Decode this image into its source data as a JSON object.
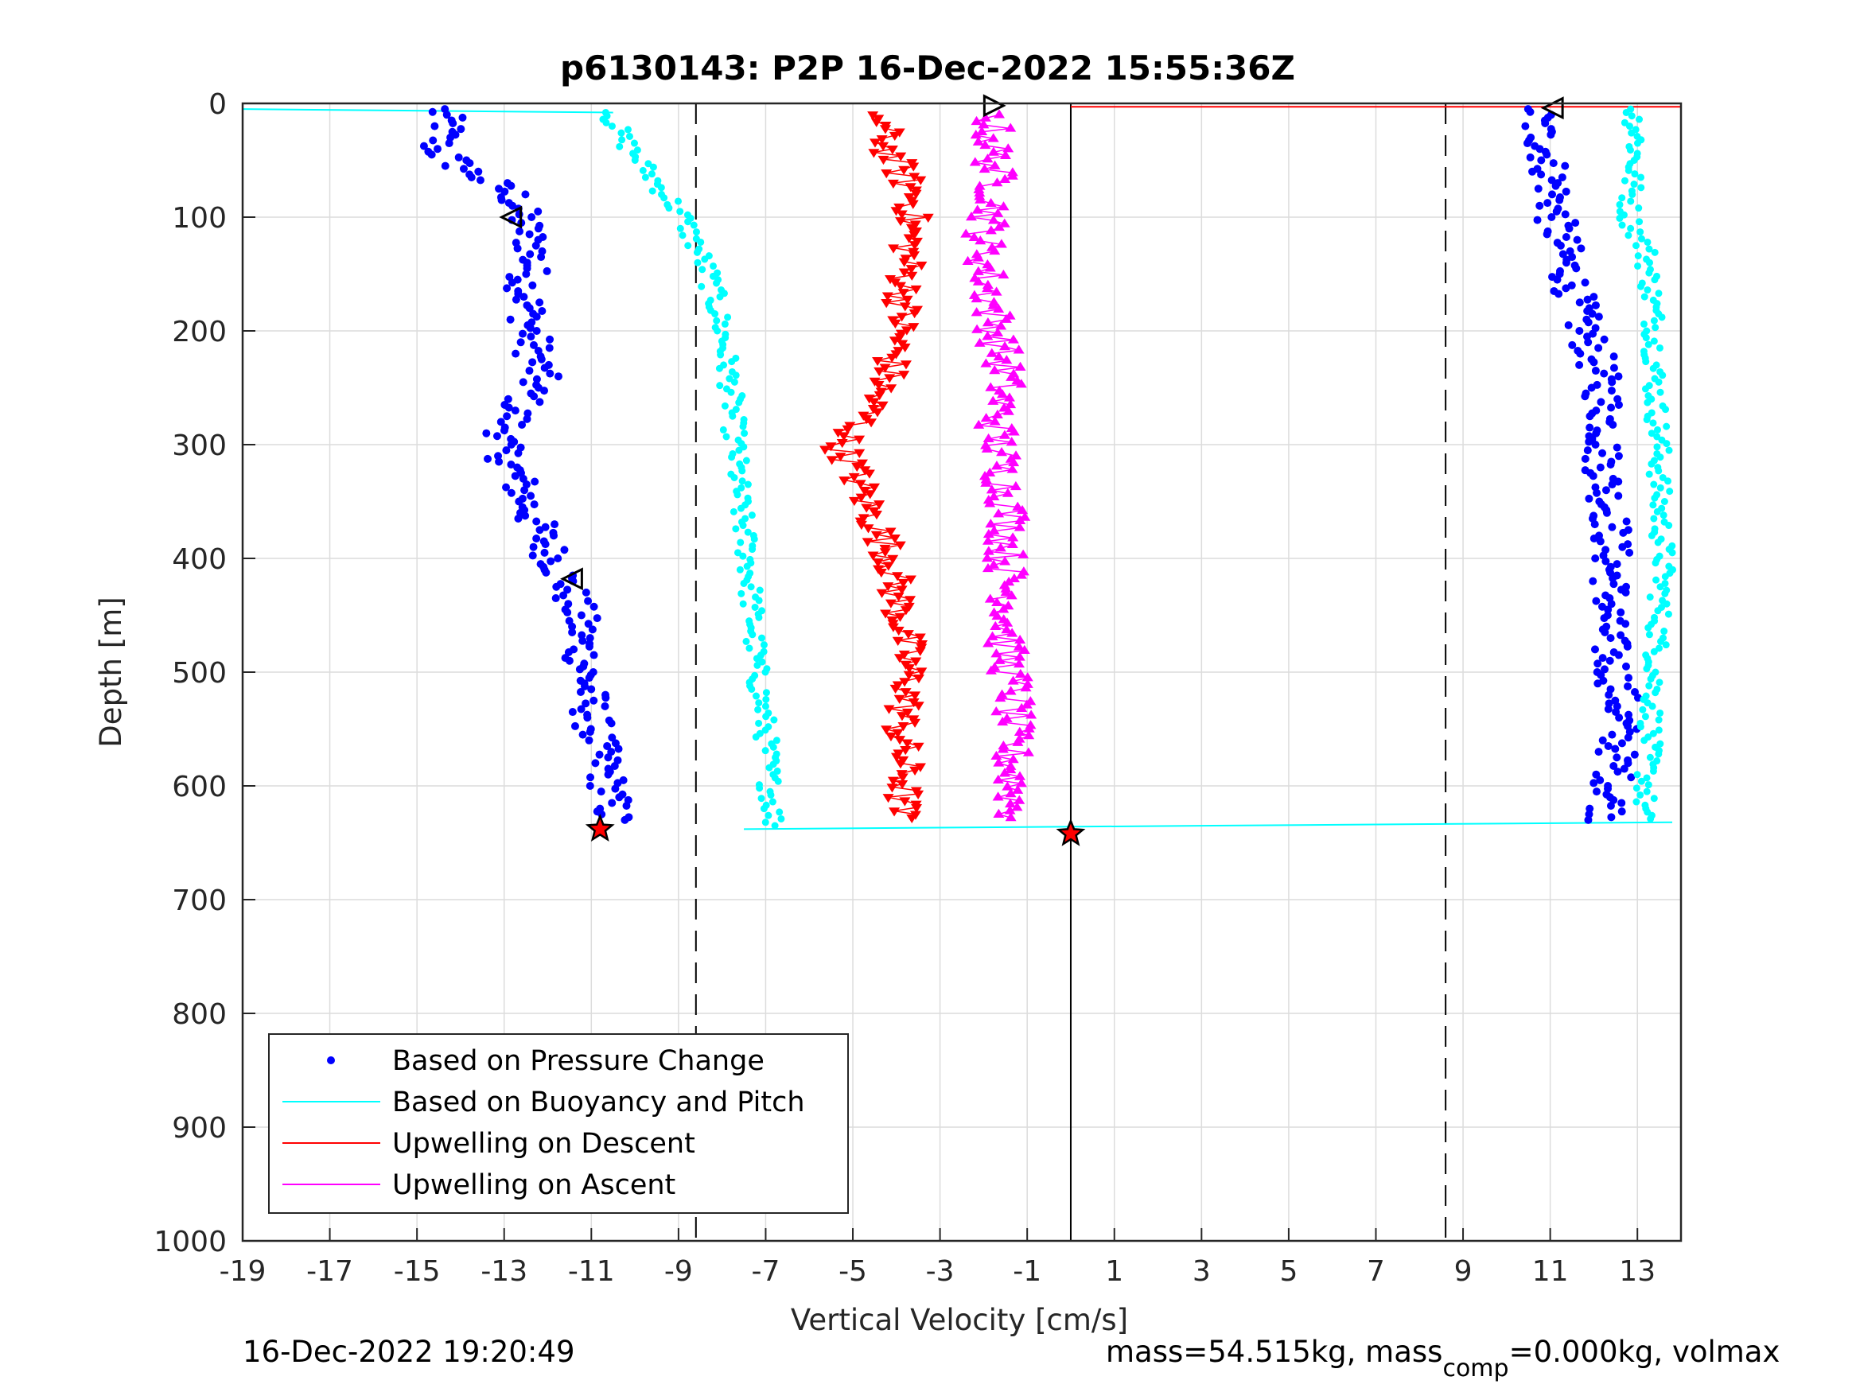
{
  "chart_data": {
    "type": "scatter",
    "title": "p6130143: P2P 16-Dec-2022 15:55:36Z",
    "xlabel": "Vertical Velocity [cm/s]",
    "ylabel": "Depth [m]",
    "xlim": [
      -19,
      14
    ],
    "ylim": [
      1000,
      0
    ],
    "y_reversed": true,
    "xticks": [
      -19,
      -17,
      -15,
      -13,
      -11,
      -9,
      -7,
      -5,
      -3,
      -1,
      1,
      3,
      5,
      7,
      9,
      11,
      13
    ],
    "yticks": [
      0,
      100,
      200,
      300,
      400,
      500,
      600,
      700,
      800,
      900,
      1000
    ],
    "grid": true,
    "legend_position": "bottom-left",
    "reference_lines": {
      "dashed_x": [
        -8.6,
        8.6
      ],
      "solid_x": [
        0
      ]
    },
    "legend": [
      {
        "label": "Based on Pressure Change",
        "color": "#0000ff",
        "marker": "dot"
      },
      {
        "label": "Based on Buoyancy and Pitch",
        "color": "#00ffff",
        "marker": "line"
      },
      {
        "label": "Upwelling on Descent",
        "color": "#ff0000",
        "marker": "line"
      },
      {
        "label": "Upwelling on Ascent",
        "color": "#ff00ff",
        "marker": "line"
      }
    ],
    "series": [
      {
        "name": "Based on Pressure Change",
        "color": "#0000ff",
        "kind": "dots",
        "branches": [
          {
            "depth": [
              5,
              20,
              40,
              60,
              80,
              100,
              130,
              160,
              200,
              240,
              270,
              300,
              330,
              360,
              390,
              420,
              450,
              480,
              510,
              540,
              570,
              600,
              630
            ],
            "velocity": [
              -14.5,
              -14.3,
              -14.6,
              -13.8,
              -12.8,
              -12.6,
              -12.3,
              -12.5,
              -12.4,
              -12.2,
              -12.7,
              -13.1,
              -12.7,
              -12.4,
              -12.0,
              -11.6,
              -11.3,
              -11.2,
              -11.1,
              -11.0,
              -10.8,
              -10.6,
              -10.5
            ]
          },
          {
            "depth": [
              5,
              20,
              40,
              60,
              80,
              100,
              130,
              160,
              190,
              220,
              250,
              280,
              310,
              340,
              370,
              400,
              430,
              460,
              490,
              520,
              550,
              580,
              610,
              630
            ],
            "velocity": [
              10.7,
              10.7,
              10.9,
              11.0,
              11.1,
              11.1,
              11.3,
              11.5,
              11.7,
              12.0,
              12.2,
              12.3,
              12.2,
              12.3,
              12.4,
              12.4,
              12.4,
              12.3,
              12.4,
              12.6,
              12.6,
              12.5,
              12.4,
              12.3
            ]
          }
        ]
      },
      {
        "name": "Based on Buoyancy and Pitch",
        "color": "#00ffff",
        "kind": "dots",
        "branches": [
          {
            "depth": [
              8,
              30,
              60,
              100,
              150,
              200,
              250,
              300,
              350,
              400,
              450,
              500,
              550,
              600,
              635
            ],
            "velocity": [
              -10.6,
              -10.3,
              -9.7,
              -8.9,
              -8.3,
              -8.0,
              -7.8,
              -7.7,
              -7.6,
              -7.4,
              -7.3,
              -7.2,
              -7.0,
              -6.9,
              -6.8
            ]
          },
          {
            "depth": [
              5,
              30,
              60,
              100,
              130,
              160,
              200,
              250,
              300,
              350,
              400,
              450,
              500,
              550,
              600,
              630
            ],
            "velocity": [
              12.9,
              13.0,
              12.9,
              12.8,
              13.2,
              13.3,
              13.4,
              13.4,
              13.5,
              13.5,
              13.6,
              13.5,
              13.4,
              13.3,
              13.2,
              13.1
            ]
          }
        ]
      },
      {
        "name": "Upwelling on Descent",
        "color": "#ff0000",
        "kind": "triangles-down",
        "depth": [
          10,
          40,
          80,
          120,
          160,
          200,
          240,
          280,
          300,
          320,
          360,
          400,
          430,
          470,
          510,
          550,
          590,
          630
        ],
        "velocity": [
          -4.4,
          -4.2,
          -3.6,
          -3.7,
          -3.8,
          -3.9,
          -4.2,
          -4.8,
          -5.3,
          -5.0,
          -4.6,
          -4.1,
          -4.0,
          -3.8,
          -3.7,
          -3.9,
          -3.8,
          -3.9
        ]
      },
      {
        "name": "Upwelling on Ascent",
        "color": "#ff00ff",
        "kind": "triangles-up",
        "depth": [
          10,
          40,
          80,
          120,
          160,
          200,
          240,
          280,
          320,
          360,
          400,
          440,
          480,
          520,
          560,
          600,
          630
        ],
        "velocity": [
          -1.8,
          -1.8,
          -1.7,
          -2.0,
          -1.9,
          -1.7,
          -1.5,
          -1.7,
          -1.6,
          -1.4,
          -1.5,
          -1.4,
          -1.5,
          -1.3,
          -1.4,
          -1.3,
          -1.3
        ]
      }
    ],
    "markers": [
      {
        "kind": "right-triangle",
        "velocity": -1.8,
        "depth": 2
      },
      {
        "kind": "left-triangle",
        "velocity": 11.1,
        "depth": 4
      },
      {
        "kind": "left-triangle",
        "velocity": -12.8,
        "depth": 100
      },
      {
        "kind": "left-triangle",
        "velocity": -11.4,
        "depth": 418
      },
      {
        "kind": "star",
        "velocity": -10.8,
        "depth": 638
      },
      {
        "kind": "star",
        "velocity": 0.0,
        "depth": 642
      }
    ]
  },
  "footer": {
    "timestamp": "16-Dec-2022 19:20:49",
    "mass_prefix": "mass=54.515kg, mass",
    "mass_sub": "comp",
    "mass_suffix": "=0.000kg, volmax"
  }
}
